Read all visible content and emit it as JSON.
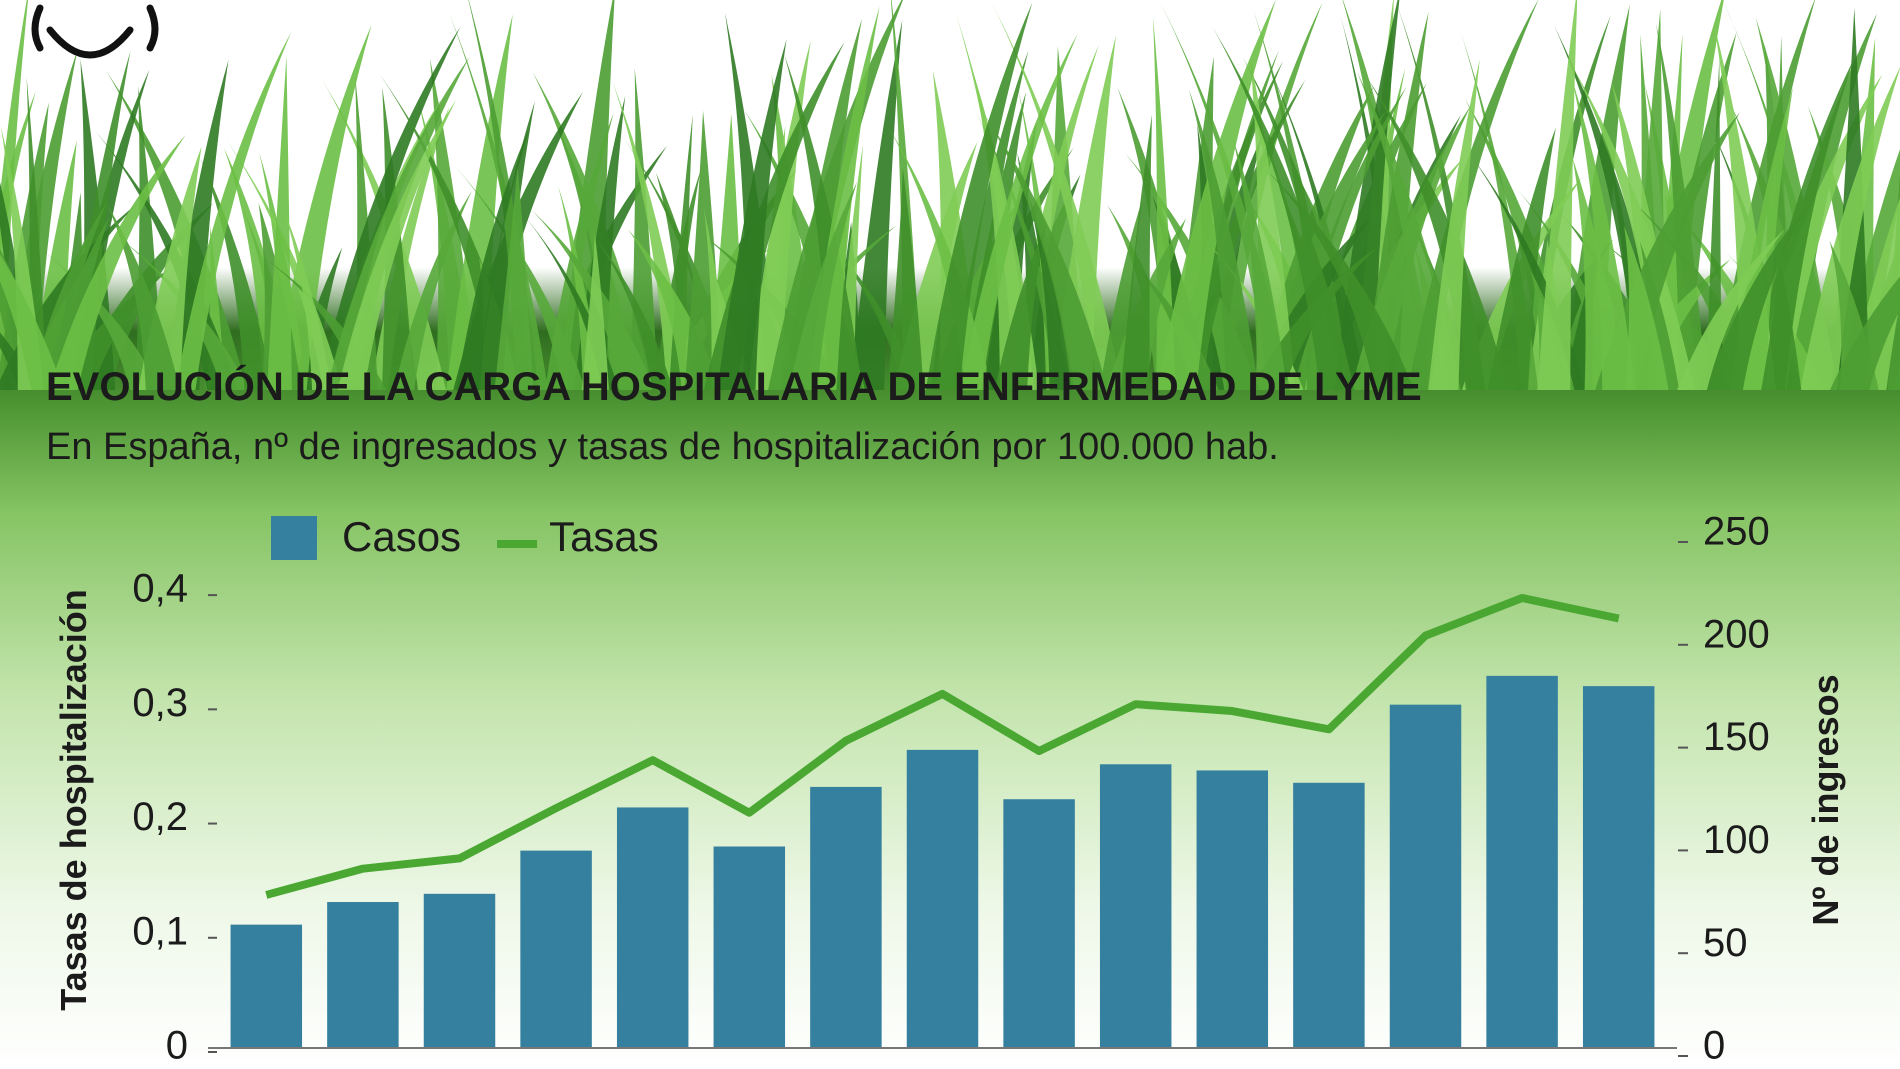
{
  "chart_data": {
    "type": "bar",
    "title": "EVOLUCIÓN DE LA CARGA HOSPITALARIA DE ENFERMEDAD DE LYME",
    "subtitle": "En España, nº de ingresados y tasas de hospitalización por 100.000 hab.",
    "y_label": "Tasas de hospitalización",
    "y2_label": "Nº de ingresos",
    "categories": [
      null,
      null,
      null,
      null,
      null,
      null,
      null,
      null,
      null,
      null,
      null,
      null,
      null,
      null,
      null
    ],
    "series": [
      {
        "name": "Casos",
        "type": "bar",
        "axis": "y2",
        "color": "#35809e",
        "values": [
          60,
          71,
          75,
          96,
          117,
          98,
          127,
          145,
          121,
          138,
          135,
          129,
          167,
          181,
          176
        ]
      },
      {
        "name": "Tasas",
        "type": "line",
        "color": "#4aa832",
        "values": [
          0.134,
          0.157,
          0.166,
          0.21,
          0.252,
          0.206,
          0.269,
          0.31,
          0.26,
          0.301,
          0.295,
          0.279,
          0.361,
          0.394,
          0.376
        ]
      }
    ],
    "ylim": [
      0,
      0.45
    ],
    "yticks": [
      0,
      {
        "value": 0.1,
        "label": "0,1"
      },
      {
        "value": 0.2,
        "label": "0,2"
      },
      {
        "value": 0.3,
        "label": "0,3"
      },
      {
        "value": 0.4,
        "label": "0,4"
      }
    ],
    "y2lim": [
      0,
      250
    ],
    "y2ticks": [
      0,
      50,
      100,
      150,
      200,
      250
    ]
  }
}
